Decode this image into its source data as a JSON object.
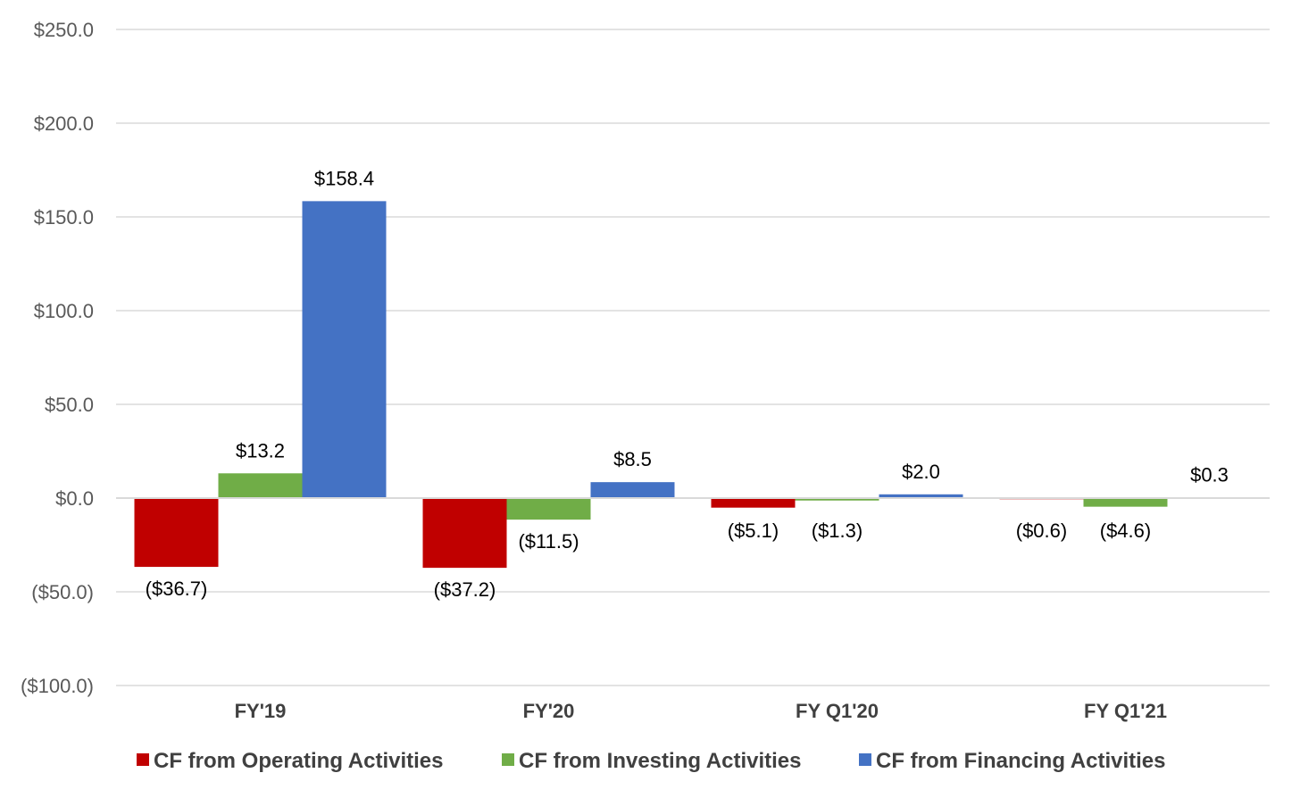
{
  "chart_data": {
    "type": "bar",
    "categories": [
      "FY'19",
      "FY'20",
      "FY Q1'20",
      "FY Q1'21"
    ],
    "series": [
      {
        "name": "CF from Operating Activities",
        "color": "#c00000",
        "values": [
          -36.7,
          -37.2,
          -5.1,
          -0.6
        ],
        "labels": [
          "($36.7)",
          "($37.2)",
          "($5.1)",
          "($0.6)"
        ]
      },
      {
        "name": "CF from Investing Activities",
        "color": "#70ad47",
        "values": [
          13.2,
          -11.5,
          -1.3,
          -4.6
        ],
        "labels": [
          "$13.2",
          "($11.5)",
          "($1.3)",
          "($4.6)"
        ]
      },
      {
        "name": "CF from Financing Activities",
        "color": "#4472c4",
        "values": [
          158.4,
          8.5,
          2.0,
          0.3
        ],
        "labels": [
          "$158.4",
          "$8.5",
          "$2.0",
          "$0.3"
        ]
      }
    ],
    "ylim": [
      -100,
      250
    ],
    "yticks": [
      250,
      200,
      150,
      100,
      50,
      0,
      -50,
      -100
    ],
    "ytick_labels": [
      "$250.0",
      "$200.0",
      "$150.0",
      "$100.0",
      "$50.0",
      "$0.0",
      "($50.0)",
      "($100.0)"
    ],
    "grid": true,
    "legend_position": "bottom",
    "title": "",
    "xlabel": "",
    "ylabel": ""
  }
}
